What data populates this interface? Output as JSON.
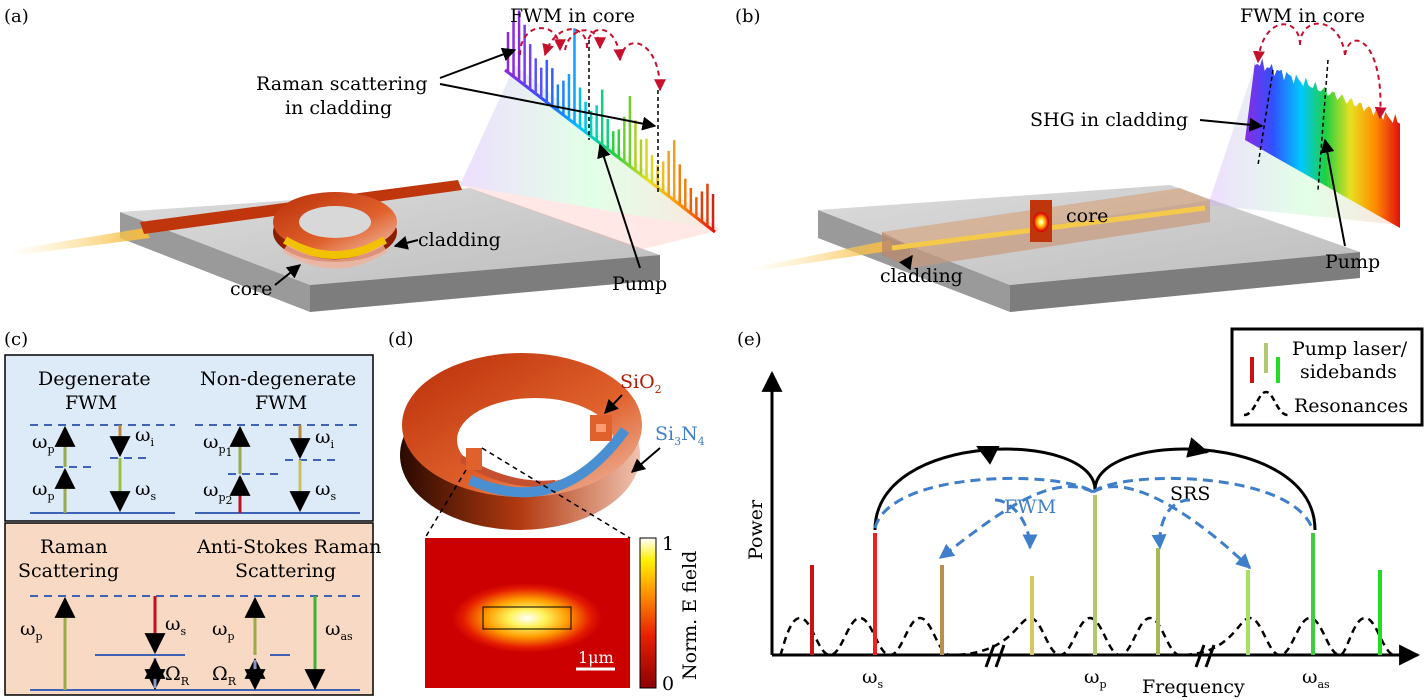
{
  "panels": {
    "a": {
      "label": "(a)",
      "fwm": "FWM in core",
      "raman_line1": "Raman scattering",
      "raman_line2": "in cladding",
      "cladding": "cladding",
      "core": "core",
      "pump": "Pump"
    },
    "b": {
      "label": "(b)",
      "fwm": "FWM in core",
      "shg": "SHG in cladding",
      "core": "core",
      "cladding": "cladding",
      "pump": "Pump"
    },
    "c": {
      "label": "(c)",
      "degenerate_line1": "Degenerate",
      "degenerate_line2": "FWM",
      "nondegenerate_line1": "Non-degenerate",
      "nondegenerate_line2": "FWM",
      "raman_line1": "Raman",
      "raman_line2": "Scattering",
      "antistokes_line1": "Anti-Stokes Raman",
      "antistokes_line2": "Scattering",
      "omega": "ω",
      "sub_p": "p",
      "sub_i": "i",
      "sub_s": "s",
      "sub_as": "as",
      "sub_p1": "p",
      "sub_p1_index": "1",
      "sub_p2": "p",
      "sub_p2_index": "2",
      "Omega": "Ω",
      "sub_R": "R"
    },
    "d": {
      "label": "(d)",
      "sio2": "SiO",
      "sio2_sub": "2",
      "si3n4_a": "Si",
      "si3n4_sub1": "3",
      "si3n4_b": "N",
      "si3n4_sub2": "4",
      "colorbar_title": "Norm. E field",
      "colorbar_max": "1",
      "colorbar_min": "0",
      "scale": "1μm"
    },
    "e": {
      "label": "(e)",
      "ylabel": "Power",
      "xlabel": "Frequency",
      "legend_pump_line1": "Pump laser/",
      "legend_pump_line2": "sidebands",
      "legend_res": "Resonances",
      "srs": "SRS",
      "fwm": "FWM",
      "omega": "ω",
      "sub_s": "s",
      "sub_p": "p",
      "sub_as": "as"
    }
  },
  "colors": {
    "red_waveguide": "#c0360c",
    "level_blue": "#3e63b6",
    "fwm_blue": "#3f7fc9",
    "box_blue_bg": "#dcebf7",
    "box_orange_bg": "#f8d9c4"
  }
}
